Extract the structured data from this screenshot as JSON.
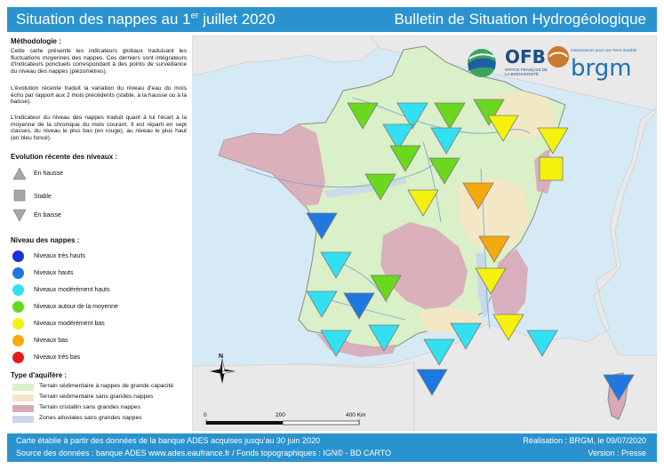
{
  "header": {
    "title_main": "Situation des nappes au 1",
    "title_sup": "er",
    "title_end": " juillet 2020",
    "bulletin": "Bulletin de Situation Hydrogéologique"
  },
  "methodology": {
    "title": "Méthodologie :",
    "p1": "Cette carte présente les indicateurs globaux traduisant les fluctuations moyennes des nappes. Ces derniers sont intégrateurs d'indicateurs ponctuels correspondant à des points de surveillance du niveau des nappes (piézomètres).",
    "p2": "L'évolution récente traduit la variation du niveau d'eau du mois échu par rapport aux 2 mois précédents (stable, à la hausse ou à la baisse).",
    "p3": "L'indicateur du niveau des nappes traduit quant à lui l'écart à la moyenne de la chronique du mois courant. Il est réparti en sept classes, du niveau le plus bas (en rouge), au niveau le plus haut (en bleu foncé)."
  },
  "evolution": {
    "title": "Evolution récente des niveaux :",
    "items": [
      {
        "label": "En hausse",
        "symbol": "up-triangle"
      },
      {
        "label": "Stable",
        "symbol": "square"
      },
      {
        "label": "En baisse",
        "symbol": "down-triangle"
      }
    ]
  },
  "levels": {
    "title": "Niveau des nappes :",
    "items": [
      {
        "label": "Niveaux très hauts",
        "color": "#1a2fd6"
      },
      {
        "label": "Niveaux hauts",
        "color": "#1f78e0"
      },
      {
        "label": "Niveaux modérément hauts",
        "color": "#33e0f2"
      },
      {
        "label": "Niveaux autour de la moyenne",
        "color": "#6ad81f"
      },
      {
        "label": "Niveaux modérément bas",
        "color": "#f4f10f"
      },
      {
        "label": "Niveaux bas",
        "color": "#f5a90b"
      },
      {
        "label": "Niveaux très bas",
        "color": "#e81c1c"
      }
    ]
  },
  "aquifer": {
    "title": "Type d'aquifère :",
    "items": [
      {
        "label": "Terrain sédimentaire à nappes de grande capacité",
        "color": "#d9f0c8"
      },
      {
        "label": "Terrain sédimentaire sans grandes nappes",
        "color": "#f6e6c6"
      },
      {
        "label": "Terrain cristallin sans grandes nappes",
        "color": "#d9a9b8"
      },
      {
        "label": "Zones alluviales sans grandes nappes",
        "color": "#c9d6ee"
      }
    ]
  },
  "logos": {
    "ofb": "OFB",
    "ofb_sub": "OFFICE FRANÇAIS DE LA BIODIVERSITÉ",
    "brgm": "brgm",
    "brgm_slogan": "Géosciences pour une Terre durable"
  },
  "map": {
    "north": "N",
    "scale": [
      "0",
      "200",
      "400 Km"
    ],
    "indicators": [
      {
        "dir": "down",
        "level": "moyenne"
      },
      {
        "dir": "down",
        "level": "mod_hauts"
      },
      {
        "dir": "down",
        "level": "moyenne"
      },
      {
        "dir": "down",
        "level": "moyenne"
      },
      {
        "dir": "down",
        "level": "mod_bas"
      },
      {
        "dir": "down",
        "level": "mod_hauts"
      },
      {
        "dir": "down",
        "level": "mod_hauts"
      },
      {
        "dir": "down",
        "level": "mod_bas"
      },
      {
        "dir": "down",
        "level": "moyenne"
      },
      {
        "dir": "down",
        "level": "moyenne"
      },
      {
        "dir": "stable",
        "level": "mod_bas"
      },
      {
        "dir": "down",
        "level": "moyenne"
      },
      {
        "dir": "down",
        "level": "mod_bas"
      },
      {
        "dir": "down",
        "level": "bas"
      },
      {
        "dir": "down",
        "level": "hauts"
      },
      {
        "dir": "down",
        "level": "bas"
      },
      {
        "dir": "down",
        "level": "mod_hauts"
      },
      {
        "dir": "down",
        "level": "mod_bas"
      },
      {
        "dir": "down",
        "level": "moyenne"
      },
      {
        "dir": "down",
        "level": "mod_hauts"
      },
      {
        "dir": "down",
        "level": "hauts"
      },
      {
        "dir": "down",
        "level": "mod_hauts"
      },
      {
        "dir": "down",
        "level": "mod_hauts"
      },
      {
        "dir": "down",
        "level": "mod_hauts"
      },
      {
        "dir": "down",
        "level": "mod_hauts"
      },
      {
        "dir": "down",
        "level": "mod_bas"
      },
      {
        "dir": "down",
        "level": "mod_hauts"
      },
      {
        "dir": "down",
        "level": "hauts"
      },
      {
        "dir": "down",
        "level": "hauts"
      }
    ]
  },
  "footer": {
    "line1": "Carte établie à partir des données de la banque ADES acquises jusqu'au 30 juin 2020",
    "line2": "Source des données : banque ADES www.ades.eaufrance.fr / Fonds topographiques : IGN© - BD CARTO",
    "realisation": "Réalisation : BRGM, le 09/07/2020",
    "version": "Version : Presse"
  }
}
